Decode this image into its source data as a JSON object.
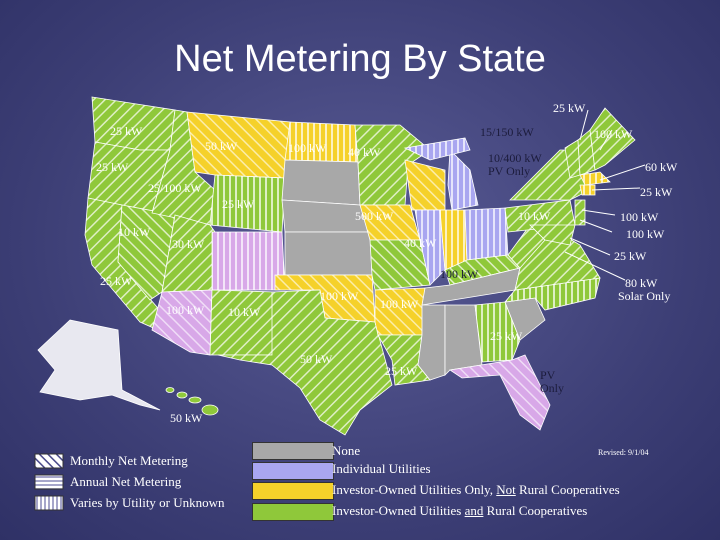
{
  "title": "Net Metering By State",
  "revised": "Revised: 9/1/04",
  "colors": {
    "none": "#a8a8a8",
    "individual_utilities": "#a9a6f0",
    "investor_owned_only": "#f5d12a",
    "investor_and_rural": "#8fc83a",
    "lavender_region": "#d8a8e8",
    "background": "#3f4178"
  },
  "map_labels": {
    "nh_top": "25 kW",
    "mi_label": "15/150 kW",
    "me_label": "100 kW",
    "wi_label": "10/400 kW",
    "wi_sub": "PV Only",
    "ma_right": "60 kW",
    "ri_right": "25 kW",
    "nj_right": "100 kW",
    "de_right": "100 kW",
    "md_right": "25 kW",
    "va_right": "80 kW",
    "va_sub": "Solar Only",
    "fl_pv": "PV",
    "fl_only": "Only",
    "hi_label": "50 kW",
    "wa": "25 kW",
    "mt": "50 kW",
    "nd": "100 kW",
    "mn": "40 kW",
    "or": "25 kW",
    "id": "25/100 kW",
    "wy": "25 kW",
    "ca": "10 kW",
    "nv": "30 kW",
    "ia": "500 kW",
    "il": "40 kW",
    "in": "100 kW",
    "oh": "10 kW",
    "ky": "25 kW",
    "ar": "25 kW",
    "ok": "100 kW",
    "az": "100 kW",
    "nm": "10 kW",
    "tx": "50 kW",
    "ga": "100 kW",
    "la": "25 kW"
  },
  "legend": {
    "patterns": [
      "Monthly Net Metering",
      "Annual Net Metering",
      "Varies by Utility or Unknown"
    ],
    "colors": {
      "none": "None",
      "individual": "Individual Utilities",
      "iou_prefix": "Investor-Owned Utilities Only, ",
      "iou_not": "Not",
      "iou_suffix": " Rural Cooperatives",
      "both_prefix": "Investor-Owned Utilities ",
      "both_and": "and",
      "both_suffix": " Rural Cooperatives"
    }
  }
}
